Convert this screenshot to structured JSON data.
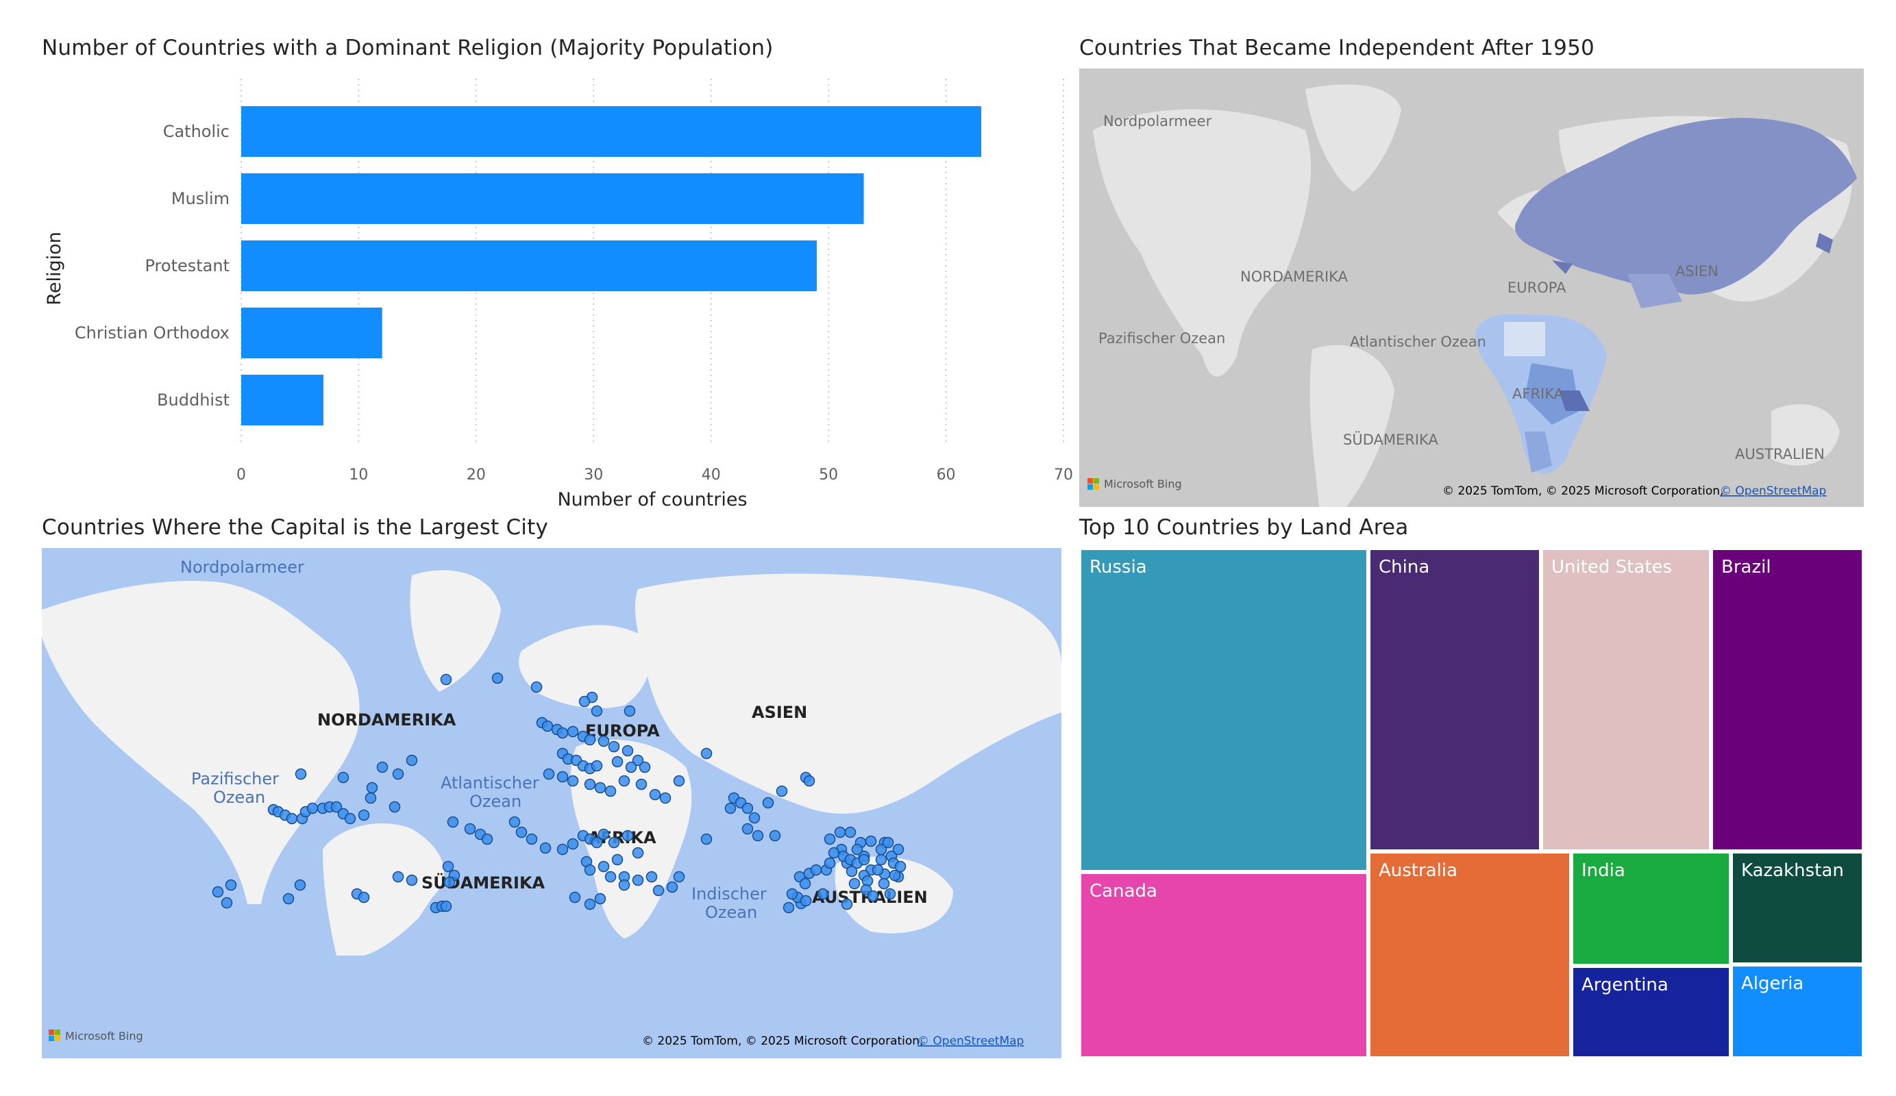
{
  "religion_chart": {
    "title": "Number of Countries with a Dominant Religion (Majority Population)",
    "bar_color": "#118DFF"
  },
  "independence_map": {
    "title": "Countries That Became Independent After 1950",
    "labels": {
      "arctic": "Nordpolarmeer",
      "north_america": "NORDAMERIKA",
      "pacific": "Pazifischer Ozean",
      "atlantic": "Atlantischer Ozean",
      "europe": "EUROPA",
      "asia": "ASIEN",
      "africa": "AFRIKA",
      "south_america": "SÜDAMERIKA",
      "australia": "AUSTRALIEN"
    },
    "logo_text": "Microsoft Bing",
    "copyright": "© 2025 TomTom, © 2025 Microsoft Corporation,",
    "osm_link": "© OpenStreetMap"
  },
  "capital_map": {
    "title": "Countries Where the Capital is the Largest City",
    "labels": {
      "arctic": "Nordpolarmeer",
      "north_america": "NORDAMERIKA",
      "pacific_1": "Pazifischer",
      "pacific_2": "Ozean",
      "atlantic_1": "Atlantischer",
      "atlantic_2": "Ozean",
      "europe": "EUROPA",
      "asia": "ASIEN",
      "africa": "AFRIKA",
      "south_america": "SÜDAMERIKA",
      "indian_1": "Indischer",
      "indian_2": "Ozean",
      "australia": "AUSTRALIEN"
    },
    "logo_text": "Microsoft Bing",
    "copyright": "© 2025 TomTom, © 2025 Microsoft Corporation,",
    "osm_link": "© OpenStreetMap",
    "point_color": "#3A8EF0"
  },
  "treemap": {
    "title": "Top 10 Countries by Land Area",
    "cells": [
      {
        "label": "Russia",
        "color": "#3599B8"
      },
      {
        "label": "Canada",
        "color": "#E645AB"
      },
      {
        "label": "China",
        "color": "#4A2A73"
      },
      {
        "label": "United States",
        "color": "#DFBFBF"
      },
      {
        "label": "Brazil",
        "color": "#6B007B"
      },
      {
        "label": "Australia",
        "color": "#E66C37"
      },
      {
        "label": "India",
        "color": "#1AAB40"
      },
      {
        "label": "Kazakhstan",
        "color": "#0E4C3F"
      },
      {
        "label": "Argentina",
        "color": "#15239C"
      },
      {
        "label": "Algeria",
        "color": "#118DFF"
      }
    ]
  },
  "chart_data": [
    {
      "type": "bar",
      "orientation": "horizontal",
      "title": "Number of Countries with a Dominant Religion (Majority Population)",
      "xlabel": "Number of countries",
      "ylabel": "Religion",
      "categories": [
        "Catholic",
        "Muslim",
        "Protestant",
        "Christian Orthodox",
        "Buddhist"
      ],
      "values": [
        63,
        53,
        49,
        12,
        7
      ],
      "xlim": [
        0,
        70
      ],
      "xticks": [
        "0",
        "10",
        "20",
        "30",
        "40",
        "50",
        "60",
        "70"
      ],
      "grid": "vertical dotted"
    },
    {
      "type": "table",
      "title": "Top 10 Countries by Land Area",
      "categories": [
        "Russia",
        "Canada",
        "China",
        "United States",
        "Brazil",
        "Australia",
        "India",
        "Kazakhstan",
        "Argentina",
        "Algeria"
      ]
    }
  ]
}
